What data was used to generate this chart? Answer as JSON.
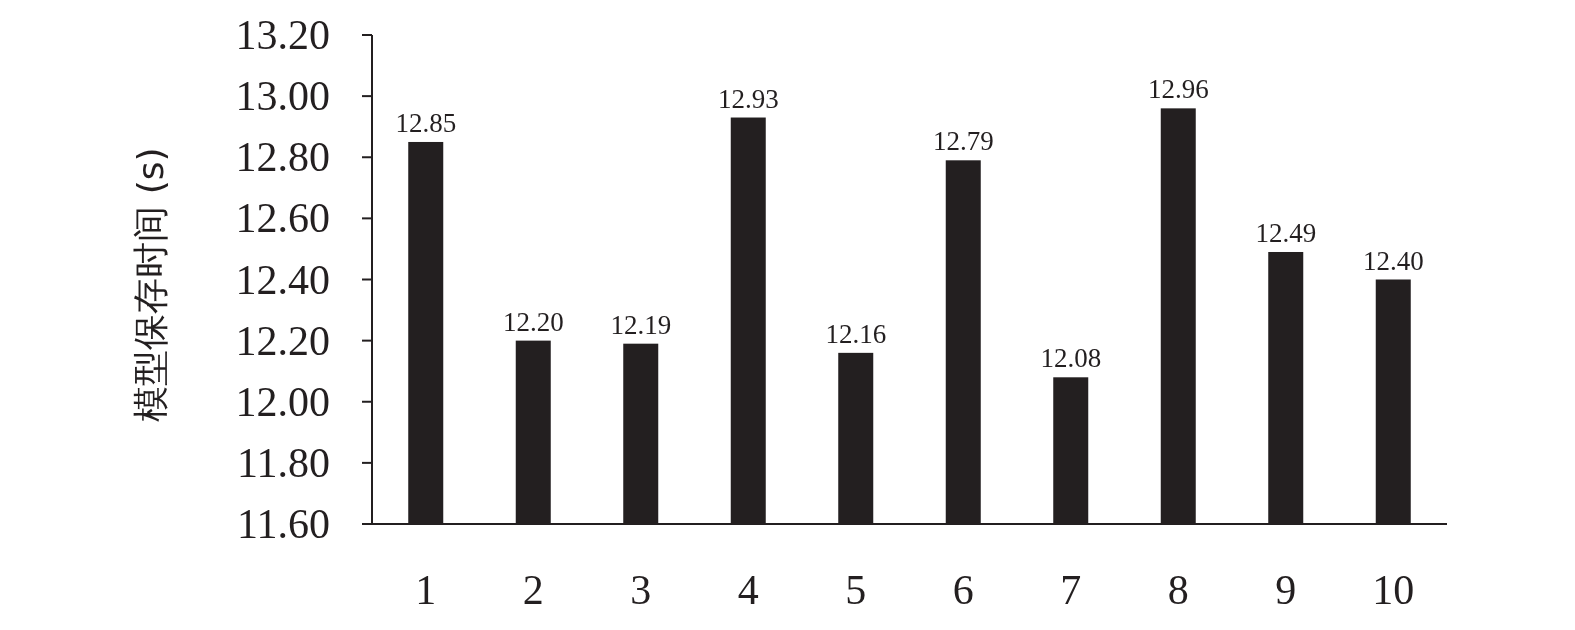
{
  "chart_data": {
    "type": "bar",
    "ylabel": "模型保存时间 (s)",
    "categories": [
      "1",
      "2",
      "3",
      "4",
      "5",
      "6",
      "7",
      "8",
      "9",
      "10"
    ],
    "values": [
      12.85,
      12.2,
      12.19,
      12.93,
      12.16,
      12.79,
      12.08,
      12.96,
      12.49,
      12.4
    ],
    "value_labels": [
      "12.85",
      "12.20",
      "12.19",
      "12.93",
      "12.16",
      "12.79",
      "12.08",
      "12.96",
      "12.49",
      "12.40"
    ],
    "color": "#231f20",
    "ylim": [
      11.6,
      13.2
    ],
    "yticks": [
      {
        "value": 11.6,
        "label": "11.60"
      },
      {
        "value": 11.8,
        "label": "11.80"
      },
      {
        "value": 12.0,
        "label": "12.00"
      },
      {
        "value": 12.2,
        "label": "12.20"
      },
      {
        "value": 12.4,
        "label": "12.40"
      },
      {
        "value": 12.6,
        "label": "12.60"
      },
      {
        "value": 12.8,
        "label": "12.80"
      },
      {
        "value": 13.0,
        "label": "13.00"
      },
      {
        "value": 13.2,
        "label": "13.20"
      }
    ]
  }
}
